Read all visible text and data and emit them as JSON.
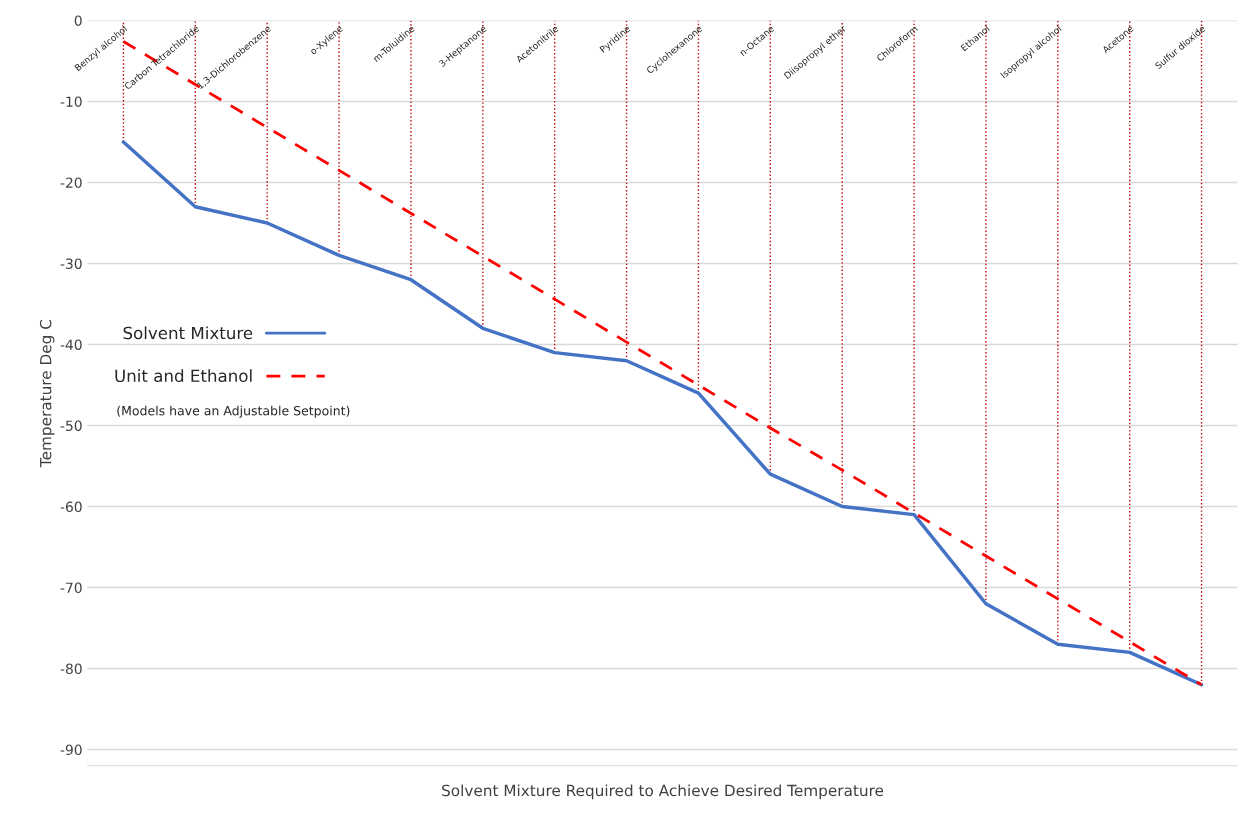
{
  "chart_data": {
    "type": "line",
    "xlabel": "Solvent Mixture Required to Achieve Desired Temperature",
    "ylabel": "Temperature Deg C",
    "categories": [
      "Benzyl alcohol",
      "Carbon Tetrachloride",
      "1,3-Dichlorobenzene",
      "o-Xylene",
      "m-Toluidine",
      "3-Heptanone",
      "Acetonitrile",
      "Pyridine",
      "Cyclohexanone",
      "n-Octane",
      "Diisopropyl ether",
      "Chloroform",
      "Ethanol",
      "Isopropyl alcohol",
      "Acetone",
      "Sulfur dioxide"
    ],
    "series": [
      {
        "name": "Solvent Mixture",
        "color": "#4472c4",
        "line_style": "solid",
        "values": [
          -15,
          -23,
          -25,
          -29,
          -32,
          -38,
          -41,
          -42,
          -46,
          -56,
          -60,
          -61,
          -72,
          -77,
          -78,
          -82
        ]
      },
      {
        "name": "Unit and Ethanol",
        "color": "#ff0000",
        "line_style": "dashed",
        "values": [
          -2.6,
          -7.9,
          -13.2,
          -18.5,
          -23.8,
          -29.1,
          -34.4,
          -39.7,
          -45.0,
          -50.3,
          -55.5,
          -60.8,
          -66.1,
          -71.4,
          -76.7,
          -82
        ]
      }
    ],
    "ref_lines": [
      {
        "axis": "x",
        "value": "Benzyl alcohol",
        "color": "#c00000",
        "line_style": "dotted"
      },
      {
        "axis": "x",
        "value": "Carbon Tetrachloride",
        "color": "#c00000",
        "line_style": "dotted"
      },
      {
        "axis": "x",
        "value": "1,3-Dichlorobenzene",
        "color": "#c00000",
        "line_style": "dotted"
      },
      {
        "axis": "x",
        "value": "o-Xylene",
        "color": "#c00000",
        "line_style": "dotted"
      },
      {
        "axis": "x",
        "value": "m-Toluidine",
        "color": "#c00000",
        "line_style": "dotted"
      },
      {
        "axis": "x",
        "value": "3-Heptanone",
        "color": "#c00000",
        "line_style": "dotted"
      },
      {
        "axis": "x",
        "value": "Acetonitrile",
        "color": "#c00000",
        "line_style": "dotted"
      },
      {
        "axis": "x",
        "value": "Pyridine",
        "color": "#c00000",
        "line_style": "dotted"
      },
      {
        "axis": "x",
        "value": "Cyclohexanone",
        "color": "#c00000",
        "line_style": "dotted"
      },
      {
        "axis": "x",
        "value": "n-Octane",
        "color": "#c00000",
        "line_style": "dotted"
      },
      {
        "axis": "x",
        "value": "Diisopropyl ether",
        "color": "#c00000",
        "line_style": "dotted"
      },
      {
        "axis": "x",
        "value": "Chloroform",
        "color": "#c00000",
        "line_style": "dotted"
      },
      {
        "axis": "x",
        "value": "Ethanol",
        "color": "#c00000",
        "line_style": "dotted"
      },
      {
        "axis": "x",
        "value": "Isopropyl alcohol",
        "color": "#c00000",
        "line_style": "dotted"
      },
      {
        "axis": "x",
        "value": "Acetone",
        "color": "#c00000",
        "line_style": "dotted"
      },
      {
        "axis": "x",
        "value": "Sulfur dioxide",
        "color": "#c00000",
        "line_style": "dotted"
      }
    ],
    "annotations": [
      "(Models have an Adjustable Setpoint)"
    ],
    "ylim": [
      -92,
      0
    ],
    "yticks": [
      0,
      -10,
      -20,
      -30,
      -40,
      -50,
      -60,
      -70,
      -80,
      -90
    ],
    "grid": "y",
    "legend": "left",
    "marker": "none"
  }
}
